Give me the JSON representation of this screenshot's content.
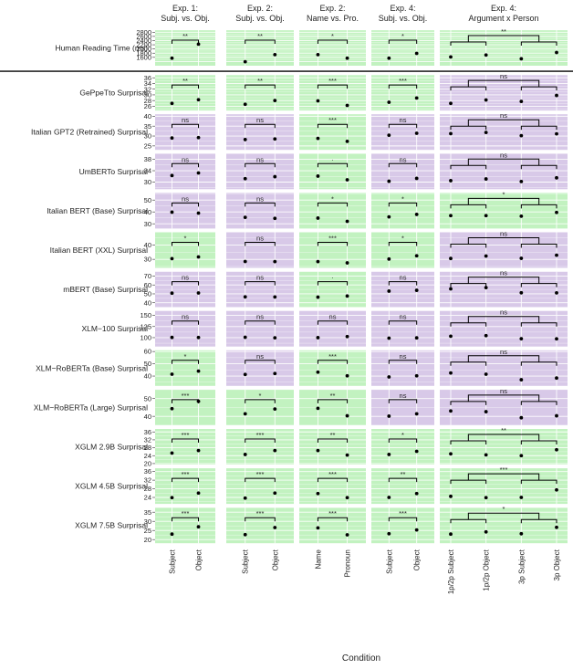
{
  "colors": {
    "green_panel": "#c2f2c0",
    "purple_panel": "#d8c9e8",
    "grid_major": "#ffffff",
    "point": "#000000",
    "bracket": "#000000",
    "text": "#222222"
  },
  "x_axis_title": "Condition",
  "experiments": [
    {
      "title_line1": "Exp. 1:",
      "title_line2": "Subj. vs. Obj.",
      "conditions": [
        "Subject",
        "Object"
      ]
    },
    {
      "title_line1": "Exp. 2:",
      "title_line2": "Subj. vs. Obj.",
      "conditions": [
        "Subject",
        "Object"
      ]
    },
    {
      "title_line1": "Exp. 2:",
      "title_line2": "Name vs. Pro.",
      "conditions": [
        "Name",
        "Pronoun"
      ]
    },
    {
      "title_line1": "Exp. 4:",
      "title_line2": "Subj. vs. Obj.",
      "conditions": [
        "Subject",
        "Object"
      ]
    },
    {
      "title_line1": "Exp. 4:",
      "title_line2": "Argument x Person",
      "conditions": [
        "1p/2p Subject",
        "1p/2p Object",
        "3p Subject",
        "3p Object"
      ]
    }
  ],
  "chart_data": {
    "type": "scatter",
    "layout": "faceted grid (metrics as rows, experiments as columns), points with significance brackets; panel fill green = significant, purple = not significant",
    "xlabel": "Condition",
    "rows": [
      {
        "label": "Human Reading Time (ms)",
        "ticks": [
          1600,
          1800,
          2000,
          2200,
          2400,
          2600,
          2800
        ],
        "ylim": [
          1200,
          2900
        ],
        "panels": [
          {
            "values": [
              1560,
              2230
            ],
            "sig": [
              "**"
            ],
            "color": "green"
          },
          {
            "values": [
              1390,
              1730
            ],
            "sig": [
              "**"
            ],
            "color": "green"
          },
          {
            "values": [
              1730,
              1560
            ],
            "sig": [
              "*"
            ],
            "color": "green"
          },
          {
            "values": [
              1560,
              1790
            ],
            "sig": [
              "*"
            ],
            "color": "green"
          },
          {
            "values": [
              1620,
              1710,
              1530,
              1830
            ],
            "sig": [
              "",
              "**",
              ""
            ],
            "color": "green"
          }
        ]
      },
      {
        "label": "GePpeTto Surprisal",
        "ticks": [
          26,
          28,
          30,
          32,
          34,
          36
        ],
        "ylim": [
          24.5,
          37
        ],
        "panels": [
          {
            "values": [
              27.0,
              28.3
            ],
            "sig": [
              "**"
            ],
            "color": "green"
          },
          {
            "values": [
              26.7,
              28.0
            ],
            "sig": [
              "**"
            ],
            "color": "green"
          },
          {
            "values": [
              27.9,
              26.3
            ],
            "sig": [
              "***"
            ],
            "color": "green"
          },
          {
            "values": [
              27.4,
              28.9
            ],
            "sig": [
              "***"
            ],
            "color": "green"
          },
          {
            "values": [
              27.0,
              28.2,
              27.7,
              29.8
            ],
            "sig": [
              "",
              "ns",
              ""
            ],
            "color": "purple"
          }
        ]
      },
      {
        "label": "Italian GPT2 (Retrained) Surprisal",
        "ticks": [
          25,
          30,
          35,
          40
        ],
        "ylim": [
          23,
          41
        ],
        "panels": [
          {
            "values": [
              29.0,
              29.2
            ],
            "sig": [
              "ns"
            ],
            "color": "purple"
          },
          {
            "values": [
              28.2,
              28.5
            ],
            "sig": [
              "ns"
            ],
            "color": "purple"
          },
          {
            "values": [
              28.8,
              27.3
            ],
            "sig": [
              "***"
            ],
            "color": "green"
          },
          {
            "values": [
              30.4,
              31.4
            ],
            "sig": [
              "ns"
            ],
            "color": "purple"
          },
          {
            "values": [
              31.2,
              31.8,
              30.2,
              31.1
            ],
            "sig": [
              "",
              "ns",
              ""
            ],
            "color": "purple"
          }
        ]
      },
      {
        "label": "UmBERTo Surprisal",
        "ticks": [
          30,
          34,
          38
        ],
        "ylim": [
          27.5,
          40
        ],
        "panels": [
          {
            "values": [
              32.3,
              33.2
            ],
            "sig": [
              "ns"
            ],
            "color": "purple"
          },
          {
            "values": [
              31.2,
              31.9
            ],
            "sig": [
              "ns"
            ],
            "color": "purple"
          },
          {
            "values": [
              32.1,
              30.8
            ],
            "sig": [
              "·"
            ],
            "color": "green"
          },
          {
            "values": [
              30.3,
              31.3
            ],
            "sig": [
              "ns"
            ],
            "color": "purple"
          },
          {
            "values": [
              30.5,
              31.1,
              30.2,
              31.5
            ],
            "sig": [
              "",
              "ns",
              ""
            ],
            "color": "purple"
          }
        ]
      },
      {
        "label": "Italian BERT (Base) Surprisal",
        "ticks": [
          30,
          40,
          50
        ],
        "ylim": [
          26,
          56
        ],
        "panels": [
          {
            "values": [
              39.8,
              39.0
            ],
            "sig": [
              "ns"
            ],
            "color": "purple"
          },
          {
            "values": [
              35.4,
              34.6
            ],
            "sig": [
              "ns"
            ],
            "color": "purple"
          },
          {
            "values": [
              34.8,
              32.1
            ],
            "sig": [
              "*"
            ],
            "color": "green"
          },
          {
            "values": [
              35.8,
              37.9
            ],
            "sig": [
              "*"
            ],
            "color": "green"
          },
          {
            "values": [
              36.9,
              36.9,
              36.4,
              39.6
            ],
            "sig": [
              "",
              "*",
              ""
            ],
            "color": "green"
          }
        ]
      },
      {
        "label": "Italian BERT (XXL) Surprisal",
        "ticks": [
          30,
          40
        ],
        "ylim": [
          24,
          49
        ],
        "panels": [
          {
            "values": [
              30.5,
              31.7
            ],
            "sig": [
              "*"
            ],
            "color": "green"
          },
          {
            "values": [
              28.5,
              28.4
            ],
            "sig": [
              "ns"
            ],
            "color": "purple"
          },
          {
            "values": [
              28.4,
              27.5
            ],
            "sig": [
              "***"
            ],
            "color": "green"
          },
          {
            "values": [
              30.2,
              32.5
            ],
            "sig": [
              "*"
            ],
            "color": "green"
          },
          {
            "values": [
              30.6,
              32.3,
              30.7,
              32.9
            ],
            "sig": [
              "",
              "ns",
              ""
            ],
            "color": "purple"
          }
        ]
      },
      {
        "label": "mBERT (Base) Surprisal",
        "ticks": [
          40,
          50,
          60,
          70
        ],
        "ylim": [
          35,
          75
        ],
        "panels": [
          {
            "values": [
              50.8,
              51.0
            ],
            "sig": [
              "ns"
            ],
            "color": "purple"
          },
          {
            "values": [
              46.6,
              46.5
            ],
            "sig": [
              "ns"
            ],
            "color": "purple"
          },
          {
            "values": [
              46.3,
              47.6
            ],
            "sig": [
              "·"
            ],
            "color": "green"
          },
          {
            "values": [
              53.1,
              54.0
            ],
            "sig": [
              "ns"
            ],
            "color": "purple"
          },
          {
            "values": [
              55.6,
              57.0,
              51.2,
              51.1
            ],
            "sig": [
              "",
              "ns",
              ""
            ],
            "color": "purple"
          }
        ]
      },
      {
        "label": "XLM−100 Surprisal",
        "ticks": [
          100,
          125,
          150
        ],
        "ylim": [
          80,
          160
        ],
        "panels": [
          {
            "values": [
              100.5,
              100.3
            ],
            "sig": [
              "ns"
            ],
            "color": "purple"
          },
          {
            "values": [
              100.8,
              99.6
            ],
            "sig": [
              "ns"
            ],
            "color": "purple"
          },
          {
            "values": [
              100.0,
              102.5
            ],
            "sig": [
              "ns"
            ],
            "color": "purple"
          },
          {
            "values": [
              98.8,
              99.5
            ],
            "sig": [
              "ns"
            ],
            "color": "purple"
          },
          {
            "values": [
              103.2,
              104.5,
              97.5,
              97.4
            ],
            "sig": [
              "",
              "ns",
              ""
            ],
            "color": "purple"
          }
        ]
      },
      {
        "label": "XLM−RoBERTa (Base) Surprisal",
        "ticks": [
          40,
          50,
          60
        ],
        "ylim": [
          32,
          61
        ],
        "panels": [
          {
            "values": [
              41.5,
              44.0
            ],
            "sig": [
              "*"
            ],
            "color": "green"
          },
          {
            "values": [
              41.3,
              42.1
            ],
            "sig": [
              "ns"
            ],
            "color": "purple"
          },
          {
            "values": [
              43.2,
              40.2
            ],
            "sig": [
              "***"
            ],
            "color": "green"
          },
          {
            "values": [
              39.3,
              40.2
            ],
            "sig": [
              "ns"
            ],
            "color": "purple"
          },
          {
            "values": [
              42.5,
              41.5,
              37.0,
              38.4
            ],
            "sig": [
              "",
              "ns",
              ""
            ],
            "color": "purple"
          }
        ]
      },
      {
        "label": "XLM−RoBERTa (Large) Surprisal",
        "ticks": [
          40,
          50
        ],
        "ylim": [
          35,
          55
        ],
        "panels": [
          {
            "values": [
              44.3,
              48.4
            ],
            "sig": [
              "***"
            ],
            "color": "green"
          },
          {
            "values": [
              41.4,
              44.1
            ],
            "sig": [
              "*"
            ],
            "color": "green"
          },
          {
            "values": [
              44.5,
              40.3
            ],
            "sig": [
              "**"
            ],
            "color": "green"
          },
          {
            "values": [
              40.1,
              41.4
            ],
            "sig": [
              "ns"
            ],
            "color": "purple"
          },
          {
            "values": [
              43.0,
              42.6,
              39.2,
              40.3
            ],
            "sig": [
              "",
              "ns",
              ""
            ],
            "color": "purple"
          }
        ]
      },
      {
        "label": "XGLM 2.9B Surprisal",
        "ticks": [
          20,
          24,
          28,
          32,
          36
        ],
        "ylim": [
          19.5,
          37.5
        ],
        "panels": [
          {
            "values": [
              25.3,
              26.6
            ],
            "sig": [
              "***"
            ],
            "color": "green"
          },
          {
            "values": [
              24.6,
              26.6
            ],
            "sig": [
              "***"
            ],
            "color": "green"
          },
          {
            "values": [
              26.6,
              24.3
            ],
            "sig": [
              "**"
            ],
            "color": "green"
          },
          {
            "values": [
              24.6,
              26.2
            ],
            "sig": [
              "*"
            ],
            "color": "green"
          },
          {
            "values": [
              24.9,
              24.4,
              24.0,
              27.0
            ],
            "sig": [
              "",
              "**",
              ""
            ],
            "color": "green"
          }
        ]
      },
      {
        "label": "XGLM 4.5B Surprisal",
        "ticks": [
          24,
          28,
          32,
          36
        ],
        "ylim": [
          21,
          37.5
        ],
        "panels": [
          {
            "values": [
              23.9,
              26.0
            ],
            "sig": [
              "***"
            ],
            "color": "green"
          },
          {
            "values": [
              23.7,
              26.0
            ],
            "sig": [
              "***"
            ],
            "color": "green"
          },
          {
            "values": [
              25.8,
              23.9
            ],
            "sig": [
              "***"
            ],
            "color": "green"
          },
          {
            "values": [
              24.0,
              25.8
            ],
            "sig": [
              "**"
            ],
            "color": "green"
          },
          {
            "values": [
              24.5,
              23.9,
              24.0,
              27.5
            ],
            "sig": [
              "",
              "***",
              ""
            ],
            "color": "green"
          }
        ]
      },
      {
        "label": "XGLM 7.5B Surprisal",
        "ticks": [
          20,
          25,
          30,
          35
        ],
        "ylim": [
          18,
          37.5
        ],
        "panels": [
          {
            "values": [
              23.0,
              27.0
            ],
            "sig": [
              "***"
            ],
            "color": "green"
          },
          {
            "values": [
              22.7,
              26.6
            ],
            "sig": [
              "***"
            ],
            "color": "green"
          },
          {
            "values": [
              26.4,
              22.6
            ],
            "sig": [
              "***"
            ],
            "color": "green"
          },
          {
            "values": [
              23.2,
              25.3
            ],
            "sig": [
              "***"
            ],
            "color": "green"
          },
          {
            "values": [
              23.0,
              24.2,
              23.2,
              26.7
            ],
            "sig": [
              "",
              "*",
              ""
            ],
            "color": "green"
          }
        ]
      }
    ]
  }
}
